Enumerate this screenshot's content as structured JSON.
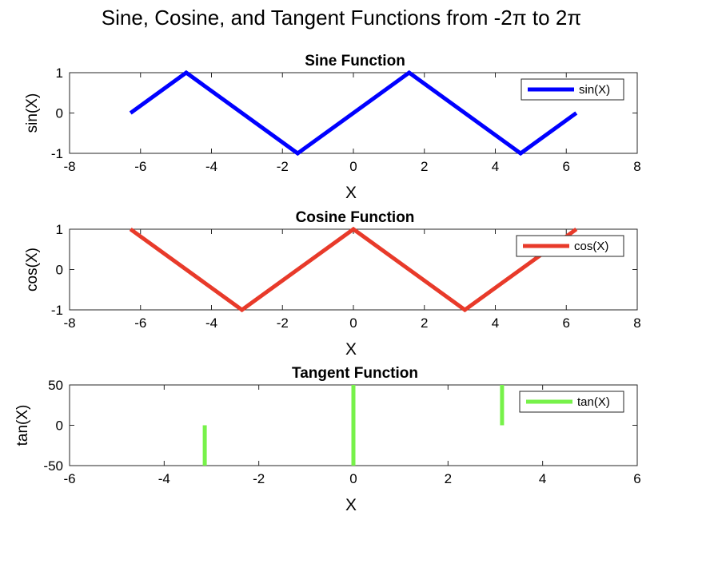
{
  "figure_title": "Sine, Cosine, and Tangent Functions from -2π to 2π",
  "chart_data": [
    {
      "type": "line",
      "title": "Sine Function",
      "xlabel": "X",
      "ylabel": "sin(X)",
      "xlim": [
        -8,
        8
      ],
      "ylim": [
        -1,
        1
      ],
      "xticks": [
        -8,
        -6,
        -4,
        -2,
        0,
        2,
        4,
        6,
        8
      ],
      "yticks": [
        -1,
        0,
        1
      ],
      "grid": false,
      "legend_position": "top-right",
      "series": [
        {
          "name": "sin(X)",
          "color": "#0000ff",
          "x": [
            -6.2832,
            -4.7124,
            -1.5708,
            1.5708,
            4.7124,
            6.2832
          ],
          "y": [
            0,
            1,
            -1,
            1,
            -1,
            0
          ]
        }
      ]
    },
    {
      "type": "line",
      "title": "Cosine Function",
      "xlabel": "X",
      "ylabel": "cos(X)",
      "xlim": [
        -8,
        8
      ],
      "ylim": [
        -1,
        1
      ],
      "xticks": [
        -8,
        -6,
        -4,
        -2,
        0,
        2,
        4,
        6,
        8
      ],
      "yticks": [
        -1,
        0,
        1
      ],
      "grid": false,
      "legend_position": "top-right",
      "series": [
        {
          "name": "cos(X)",
          "color": "#e83a2a",
          "x": [
            -6.2832,
            -3.1416,
            0,
            3.1416,
            6.2832
          ],
          "y": [
            1,
            -1,
            1,
            -1,
            1
          ]
        }
      ]
    },
    {
      "type": "line",
      "title": "Tangent Function",
      "xlabel": "X",
      "ylabel": "tan(X)",
      "xlim": [
        -6,
        6
      ],
      "ylim": [
        -50,
        50
      ],
      "xticks": [
        -6,
        -4,
        -2,
        0,
        2,
        4,
        6
      ],
      "yticks": [
        -50,
        0,
        50
      ],
      "grid": false,
      "legend_position": "top-right",
      "series": [
        {
          "name": "tan(X)",
          "color": "#77f24a",
          "segments": [
            {
              "x": [
                -3.1416,
                -3.1416
              ],
              "y": [
                -50,
                0
              ]
            },
            {
              "x": [
                0,
                0
              ],
              "y": [
                -50,
                50
              ]
            },
            {
              "x": [
                3.1416,
                3.1416
              ],
              "y": [
                0,
                50
              ]
            }
          ]
        }
      ]
    }
  ]
}
